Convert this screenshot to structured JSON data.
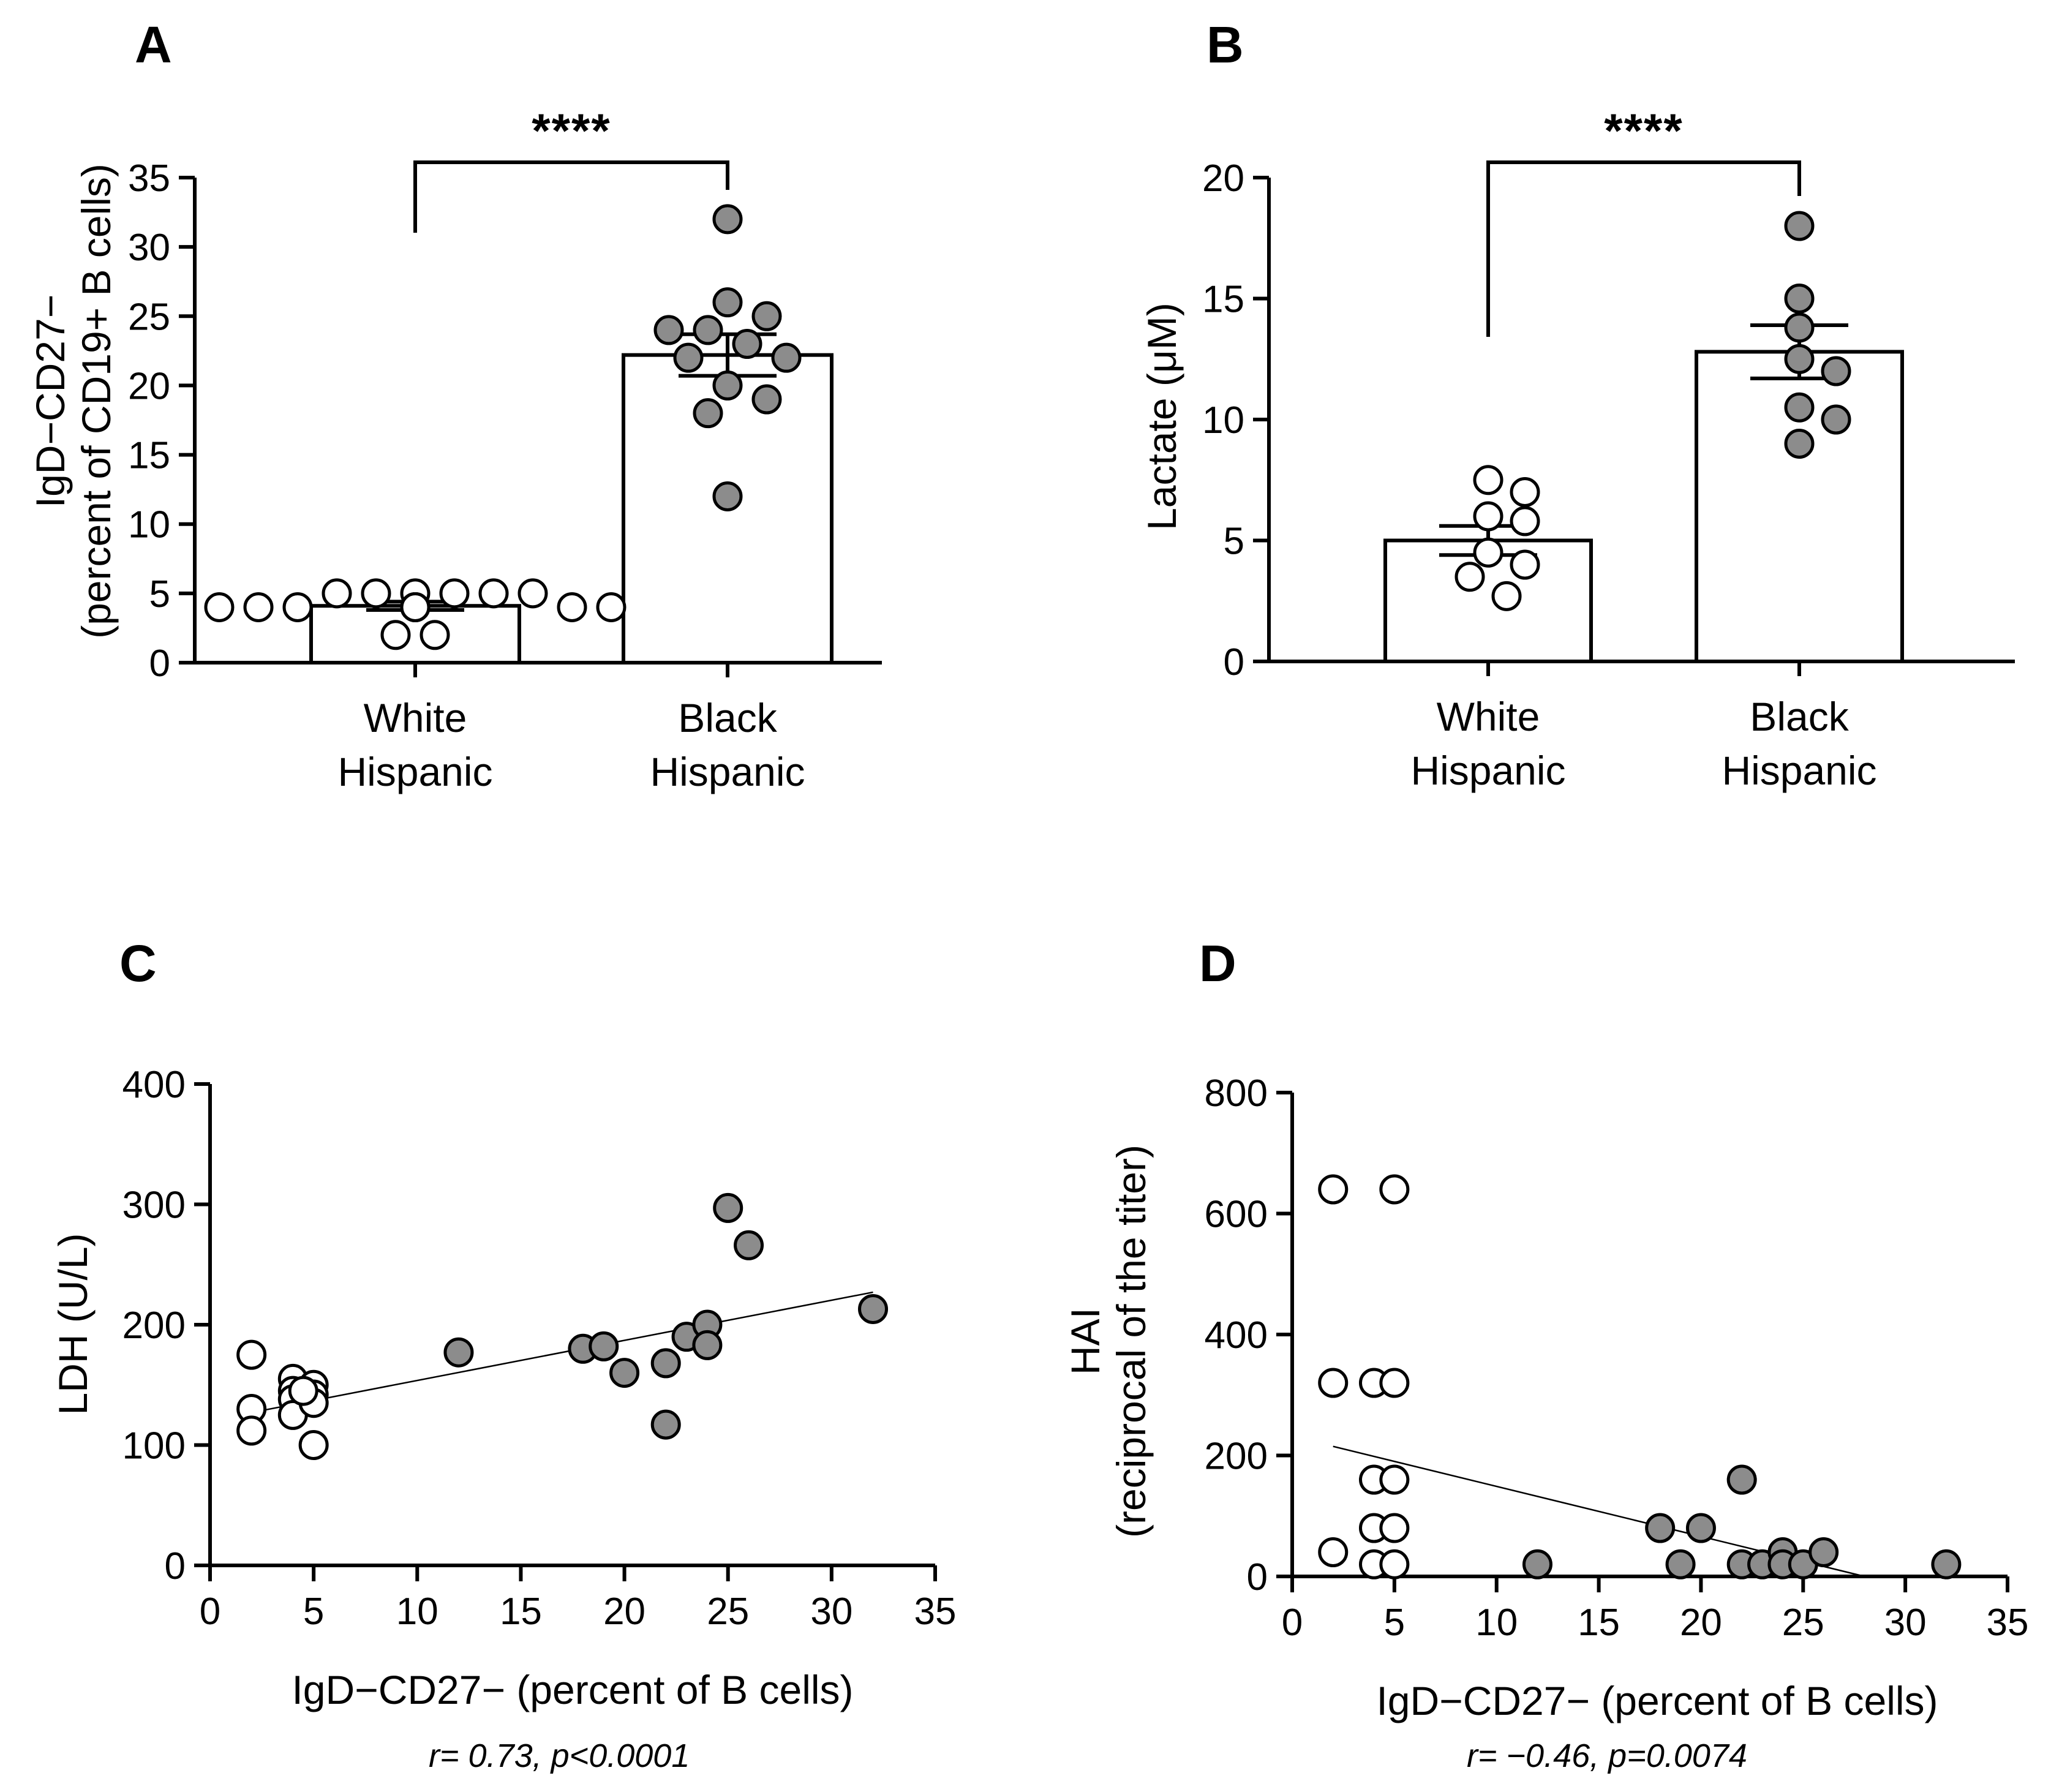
{
  "panels": {
    "A": {
      "letter": "A",
      "stars": "****"
    },
    "B": {
      "letter": "B",
      "stars": "****"
    },
    "C": {
      "letter": "C",
      "annotation": "r= 0.73, p<0.0001"
    },
    "D": {
      "letter": "D",
      "annotation": "r= −0.46, p=0.0074"
    }
  },
  "colors": {
    "white_group": "#ffffff",
    "black_group": "#8c8c8c",
    "stroke": "#000000"
  },
  "chart_data": [
    {
      "id": "A",
      "type": "bar",
      "ylabel": "IgD−CD27−",
      "ylabel2": "(percent of CD19+ B cells)",
      "ylim": [
        0,
        35
      ],
      "yticks": [
        0,
        5,
        10,
        15,
        20,
        25,
        30,
        35
      ],
      "categories": [
        {
          "line1": "White",
          "line2": "Hispanic"
        },
        {
          "line1": "Black",
          "line2": "Hispanic"
        }
      ],
      "series": [
        {
          "name": "White Hispanic",
          "mean": 4.1,
          "sem": 0.3,
          "points": [
            5,
            4,
            4,
            4,
            5,
            4,
            2,
            4,
            4,
            4,
            5,
            4,
            2,
            5,
            5,
            4,
            4,
            5,
            4
          ]
        },
        {
          "name": "Black Hispanic",
          "mean": 22.2,
          "sem": 1.5,
          "points": [
            32,
            25,
            24,
            23,
            22,
            26,
            24,
            22,
            20,
            19,
            18,
            12
          ]
        }
      ],
      "significance": "****"
    },
    {
      "id": "B",
      "type": "bar",
      "ylabel": "Lactate (μM)",
      "ylim": [
        0,
        20
      ],
      "yticks": [
        0,
        5,
        10,
        15,
        20
      ],
      "categories": [
        {
          "line1": "White",
          "line2": "Hispanic"
        },
        {
          "line1": "Black",
          "line2": "Hispanic"
        }
      ],
      "series": [
        {
          "name": "White Hispanic",
          "mean": 5.0,
          "sem": 0.6,
          "points": [
            7.5,
            7.0,
            6.0,
            5.8,
            4.5,
            4.0,
            3.5,
            2.7
          ]
        },
        {
          "name": "Black Hispanic",
          "mean": 12.8,
          "sem": 1.1,
          "points": [
            18,
            15,
            13.8,
            12.5,
            12.0,
            10.0,
            9.0,
            10.5
          ]
        }
      ],
      "significance": "****"
    },
    {
      "id": "C",
      "type": "scatter",
      "xlabel": "IgD−CD27− (percent of B cells)",
      "ylabel": "LDH (U/L)",
      "xlim": [
        0,
        35
      ],
      "ylim": [
        0,
        400
      ],
      "xticks": [
        0,
        5,
        10,
        15,
        20,
        25,
        30,
        35
      ],
      "yticks": [
        0,
        100,
        200,
        300,
        400
      ],
      "fit": {
        "x": [
          2,
          32
        ],
        "y": [
          127,
          227
        ]
      },
      "series": [
        {
          "name": "White Hispanic",
          "points": [
            [
              2,
              175
            ],
            [
              2,
              130
            ],
            [
              2,
              112
            ],
            [
              4,
              155
            ],
            [
              4,
              145
            ],
            [
              4,
              138
            ],
            [
              4,
              125
            ],
            [
              5,
              150
            ],
            [
              5,
              142
            ],
            [
              5,
              135
            ],
            [
              5,
              100
            ],
            [
              4.5,
              145
            ]
          ]
        },
        {
          "name": "Black Hispanic",
          "points": [
            [
              12,
              177
            ],
            [
              18,
              180
            ],
            [
              19,
              182
            ],
            [
              20,
              160
            ],
            [
              22,
              168
            ],
            [
              22,
              117
            ],
            [
              23,
              190
            ],
            [
              24,
              200
            ],
            [
              24,
              183
            ],
            [
              25,
              297
            ],
            [
              26,
              266
            ],
            [
              32,
              213
            ]
          ]
        }
      ]
    },
    {
      "id": "D",
      "type": "scatter",
      "xlabel": "IgD−CD27− (percent of B cells)",
      "ylabel": "HAI",
      "ylabel2": "(reciprocal of the titer)",
      "xlim": [
        0,
        35
      ],
      "ylim": [
        0,
        800
      ],
      "xticks": [
        0,
        5,
        10,
        15,
        20,
        25,
        30,
        35
      ],
      "yticks": [
        0,
        200,
        400,
        600,
        800
      ],
      "fit": {
        "x": [
          2,
          28
        ],
        "y": [
          215,
          0
        ]
      },
      "series": [
        {
          "name": "White Hispanic",
          "points": [
            [
              2,
              640
            ],
            [
              2,
              320
            ],
            [
              2,
              40
            ],
            [
              4,
              320
            ],
            [
              4,
              160
            ],
            [
              4,
              80
            ],
            [
              4,
              20
            ],
            [
              5,
              640
            ],
            [
              5,
              320
            ],
            [
              5,
              160
            ],
            [
              5,
              80
            ],
            [
              5,
              20
            ]
          ]
        },
        {
          "name": "Black Hispanic",
          "points": [
            [
              12,
              20
            ],
            [
              18,
              80
            ],
            [
              19,
              20
            ],
            [
              20,
              80
            ],
            [
              22,
              160
            ],
            [
              22,
              20
            ],
            [
              23,
              20
            ],
            [
              24,
              40
            ],
            [
              24,
              20
            ],
            [
              25,
              20
            ],
            [
              26,
              40
            ],
            [
              32,
              20
            ]
          ]
        }
      ]
    }
  ]
}
